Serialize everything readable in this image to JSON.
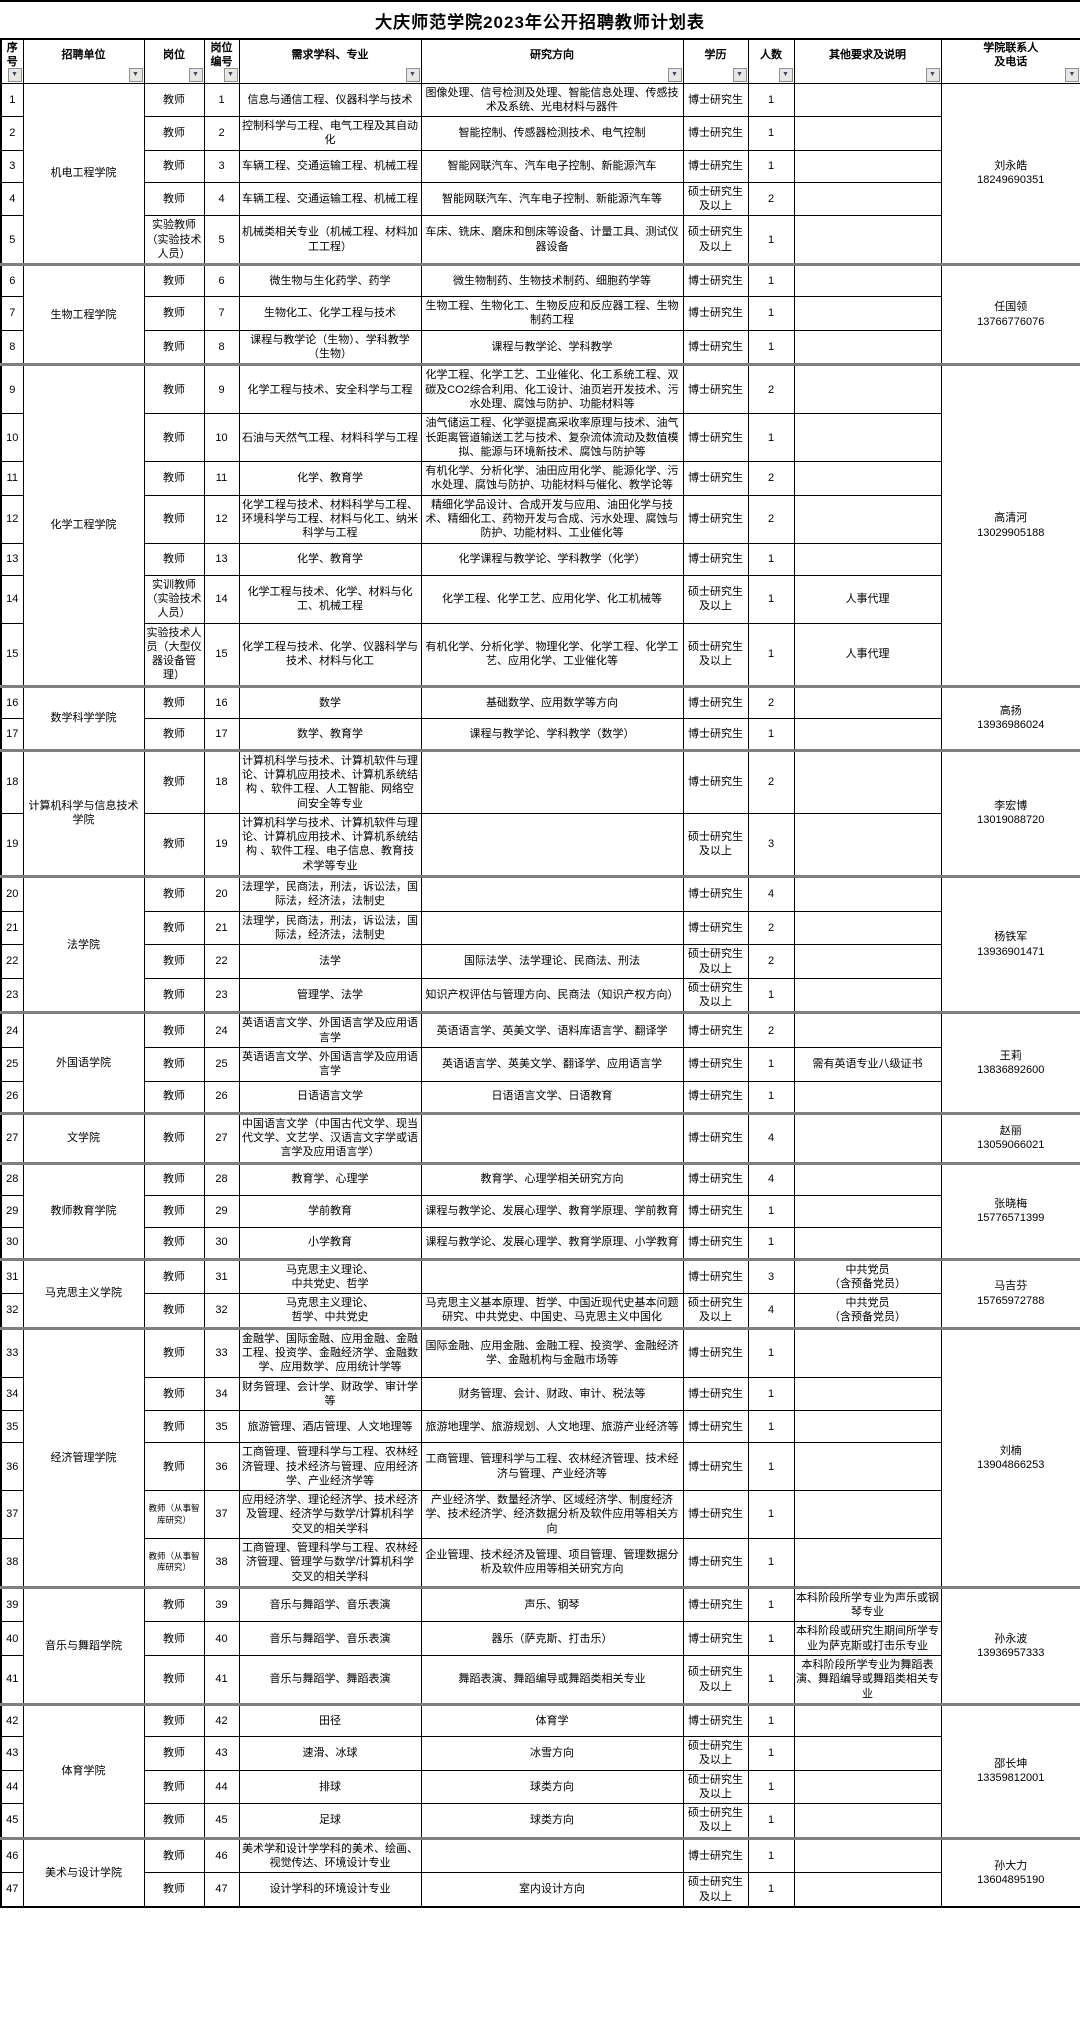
{
  "title": "大庆师范学院2023年公开招聘教师计划表",
  "columns": [
    {
      "key": "no",
      "label": "序号"
    },
    {
      "key": "unit",
      "label": "招聘单位"
    },
    {
      "key": "post",
      "label": "岗位"
    },
    {
      "key": "post_no",
      "label": "岗位编号"
    },
    {
      "key": "major",
      "label": "需求学科、专业"
    },
    {
      "key": "direction",
      "label": "研究方向"
    },
    {
      "key": "degree",
      "label": "学历"
    },
    {
      "key": "count",
      "label": "人数"
    },
    {
      "key": "other",
      "label": "其他要求及说明"
    },
    {
      "key": "contact",
      "label": "学院联系人\n及电话"
    }
  ],
  "filter_icon": "▼",
  "groups": [
    {
      "unit": "机电工程学院",
      "contact": {
        "name": "刘永皓",
        "phone": "18249690351"
      },
      "rows": [
        {
          "no": 1,
          "post": "教师",
          "post_no": 1,
          "major": "信息与通信工程、仪器科学与技术",
          "direction": "图像处理、信号检测及处理、智能信息处理、传感技术及系统、光电材料与器件",
          "degree": "博士研究生",
          "count": 1,
          "other": ""
        },
        {
          "no": 2,
          "post": "教师",
          "post_no": 2,
          "major": "控制科学与工程、电气工程及其自动化",
          "direction": "智能控制、传感器检测技术、电气控制",
          "degree": "博士研究生",
          "count": 1,
          "other": ""
        },
        {
          "no": 3,
          "post": "教师",
          "post_no": 3,
          "major": "车辆工程、交通运输工程、机械工程",
          "direction": "智能网联汽车、汽车电子控制、新能源汽车",
          "degree": "博士研究生",
          "count": 1,
          "other": ""
        },
        {
          "no": 4,
          "post": "教师",
          "post_no": 4,
          "major": "车辆工程、交通运输工程、机械工程",
          "direction": "智能网联汽车、汽车电子控制、新能源汽车等",
          "degree": "硕士研究生及以上",
          "count": 2,
          "other": ""
        },
        {
          "no": 5,
          "post": "实验教师（实验技术人员）",
          "post_no": 5,
          "major": "机械类相关专业（机械工程、材料加工工程）",
          "direction": "车床、铣床、磨床和刨床等设备、计量工具、测试仪器设备",
          "degree": "硕士研究生及以上",
          "count": 1,
          "other": ""
        }
      ]
    },
    {
      "unit": "生物工程学院",
      "contact": {
        "name": "任国领",
        "phone": "13766776076"
      },
      "rows": [
        {
          "no": 6,
          "post": "教师",
          "post_no": 6,
          "major": "微生物与生化药学、药学",
          "direction": "微生物制药、生物技术制药、细胞药学等",
          "degree": "博士研究生",
          "count": 1,
          "other": ""
        },
        {
          "no": 7,
          "post": "教师",
          "post_no": 7,
          "major": "生物化工、化学工程与技术",
          "direction": "生物工程、生物化工、生物反应和反应器工程、生物制药工程",
          "degree": "博士研究生",
          "count": 1,
          "other": ""
        },
        {
          "no": 8,
          "post": "教师",
          "post_no": 8,
          "major": "课程与教学论（生物）、学科教学（生物）",
          "direction": "课程与教学论、学科教学",
          "degree": "博士研究生",
          "count": 1,
          "other": ""
        }
      ]
    },
    {
      "unit": "化学工程学院",
      "contact": {
        "name": "高清河",
        "phone": "13029905188"
      },
      "rows": [
        {
          "no": 9,
          "post": "教师",
          "post_no": 9,
          "major": "化学工程与技术、安全科学与工程",
          "direction": "化学工程、化学工艺、工业催化、化工系统工程、双碳及CO2综合利用、化工设计、油页岩开发技术、污水处理、腐蚀与防护、功能材料等",
          "degree": "博士研究生",
          "count": 2,
          "other": ""
        },
        {
          "no": 10,
          "post": "教师",
          "post_no": 10,
          "major": "石油与天然气工程、材料科学与工程",
          "direction": "油气储运工程、化学驱提高采收率原理与技术、油气长距离管道输送工艺与技术、复杂流体流动及数值模拟、能源与环境新技术、腐蚀与防护等",
          "degree": "博士研究生",
          "count": 1,
          "other": ""
        },
        {
          "no": 11,
          "post": "教师",
          "post_no": 11,
          "major": "化学、教育学",
          "direction": "有机化学、分析化学、油田应用化学、能源化学、污水处理、腐蚀与防护、功能材料与催化、教学论等",
          "degree": "博士研究生",
          "count": 2,
          "other": ""
        },
        {
          "no": 12,
          "post": "教师",
          "post_no": 12,
          "major": "化学工程与技术、材料科学与工程、环境科学与工程、材料与化工、纳米科学与工程",
          "direction": "精细化学品设计、合成开发与应用、油田化学与技术、精细化工、药物开发与合成、污水处理、腐蚀与防护、功能材料、工业催化等",
          "degree": "博士研究生",
          "count": 2,
          "other": ""
        },
        {
          "no": 13,
          "post": "教师",
          "post_no": 13,
          "major": "化学、教育学",
          "direction": "化学课程与教学论、学科教学（化学）",
          "degree": "博士研究生",
          "count": 1,
          "other": ""
        },
        {
          "no": 14,
          "post": "实训教师（实验技术人员）",
          "post_no": 14,
          "major": "化学工程与技术、化学、材料与化工、机械工程",
          "direction": "化学工程、化学工艺、应用化学、化工机械等",
          "degree": "硕士研究生及以上",
          "count": 1,
          "other": "人事代理"
        },
        {
          "no": 15,
          "post": "实验技术人员（大型仪器设备管理）",
          "post_no": 15,
          "major": "化学工程与技术、化学、仪器科学与技术、材料与化工",
          "direction": "有机化学、分析化学、物理化学、化学工程、化学工艺、应用化学、工业催化等",
          "degree": "硕士研究生及以上",
          "count": 1,
          "other": "人事代理"
        }
      ]
    },
    {
      "unit": "数学科学学院",
      "contact": {
        "name": "高扬",
        "phone": "13936986024"
      },
      "rows": [
        {
          "no": 16,
          "post": "教师",
          "post_no": 16,
          "major": "数学",
          "direction": "基础数学、应用数学等方向",
          "degree": "博士研究生",
          "count": 2,
          "other": ""
        },
        {
          "no": 17,
          "post": "教师",
          "post_no": 17,
          "major": "数学、教育学",
          "direction": "课程与教学论、学科教学（数学）",
          "degree": "博士研究生",
          "count": 1,
          "other": ""
        }
      ]
    },
    {
      "unit": "计算机科学与信息技术学院",
      "contact": {
        "name": "李宏博",
        "phone": "13019088720"
      },
      "rows": [
        {
          "no": 18,
          "post": "教师",
          "post_no": 18,
          "major": "计算机科学与技术、计算机软件与理论、计算机应用技术、计算机系统结构 、软件工程、人工智能、网络空间安全等专业",
          "direction": "",
          "degree": "博士研究生",
          "count": 2,
          "other": ""
        },
        {
          "no": 19,
          "post": "教师",
          "post_no": 19,
          "major": "计算机科学与技术、计算机软件与理论、计算机应用技术、计算机系统结构 、软件工程、电子信息、教育技术学等专业",
          "direction": "",
          "degree": "硕士研究生及以上",
          "count": 3,
          "other": ""
        }
      ]
    },
    {
      "unit": "法学院",
      "contact": {
        "name": "杨铁军",
        "phone": "13936901471"
      },
      "rows": [
        {
          "no": 20,
          "post": "教师",
          "post_no": 20,
          "major": "法理学，民商法，刑法，诉讼法，国际法，经济法，法制史",
          "direction": "",
          "degree": "博士研究生",
          "count": 4,
          "other": ""
        },
        {
          "no": 21,
          "post": "教师",
          "post_no": 21,
          "major": "法理学，民商法，刑法，诉讼法，国际法，经济法，法制史",
          "direction": "",
          "degree": "博士研究生",
          "count": 2,
          "other": ""
        },
        {
          "no": 22,
          "post": "教师",
          "post_no": 22,
          "major": "法学",
          "direction": "国际法学、法学理论、民商法、刑法",
          "degree": "硕士研究生及以上",
          "count": 2,
          "other": ""
        },
        {
          "no": 23,
          "post": "教师",
          "post_no": 23,
          "major": "管理学、法学",
          "direction": "知识产权评估与管理方向、民商法（知识产权方向）",
          "degree": "硕士研究生及以上",
          "count": 1,
          "other": ""
        }
      ]
    },
    {
      "unit": "外国语学院",
      "contact": {
        "name": "王莉",
        "phone": "13836892600"
      },
      "rows": [
        {
          "no": 24,
          "post": "教师",
          "post_no": 24,
          "major": "英语语言文学、外国语言学及应用语言学",
          "direction": "英语语言学、英美文学、语料库语言学、翻译学",
          "degree": "博士研究生",
          "count": 2,
          "other": ""
        },
        {
          "no": 25,
          "post": "教师",
          "post_no": 25,
          "major": "英语语言文学、外国语言学及应用语言学",
          "direction": "英语语言学、英美文学、翻译学、应用语言学",
          "degree": "博士研究生",
          "count": 1,
          "other": "需有英语专业八级证书"
        },
        {
          "no": 26,
          "post": "教师",
          "post_no": 26,
          "major": "日语语言文学",
          "direction": "日语语言文学、日语教育",
          "degree": "博士研究生",
          "count": 1,
          "other": ""
        }
      ]
    },
    {
      "unit": "文学院",
      "contact": {
        "name": "赵丽",
        "phone": "13059066021"
      },
      "rows": [
        {
          "no": 27,
          "post": "教师",
          "post_no": 27,
          "major": "中国语言文学（中国古代文学、现当代文学、文艺学、汉语言文字学或语言学及应用语言学）",
          "direction": "",
          "degree": "博士研究生",
          "count": 4,
          "other": ""
        }
      ]
    },
    {
      "unit": "教师教育学院",
      "contact": {
        "name": "张晓梅",
        "phone": "15776571399"
      },
      "rows": [
        {
          "no": 28,
          "post": "教师",
          "post_no": 28,
          "major": "教育学、心理学",
          "direction": "教育学、心理学相关研究方向",
          "degree": "博士研究生",
          "count": 4,
          "other": ""
        },
        {
          "no": 29,
          "post": "教师",
          "post_no": 29,
          "major": "学前教育",
          "direction": "课程与教学论、发展心理学、教育学原理、学前教育",
          "degree": "博士研究生",
          "count": 1,
          "other": ""
        },
        {
          "no": 30,
          "post": "教师",
          "post_no": 30,
          "major": "小学教育",
          "direction": "课程与教学论、发展心理学、教育学原理、小学教育",
          "degree": "博士研究生",
          "count": 1,
          "other": ""
        }
      ]
    },
    {
      "unit": "马克思主义学院",
      "contact": {
        "name": "马吉芬",
        "phone": "15765972788"
      },
      "rows": [
        {
          "no": 31,
          "post": "教师",
          "post_no": 31,
          "major": "马克思主义理论、\n中共党史、哲学",
          "direction": "",
          "degree": "博士研究生",
          "count": 3,
          "other": "中共党员\n（含预备党员）"
        },
        {
          "no": 32,
          "post": "教师",
          "post_no": 32,
          "major": "马克思主义理论、\n哲学、中共党史",
          "direction": "马克思主义基本原理、哲学、中国近现代史基本问题研究、中共党史、中国史、马克思主义中国化",
          "degree": "硕士研究生及以上",
          "count": 4,
          "other": "中共党员\n（含预备党员）"
        }
      ]
    },
    {
      "unit": "经济管理学院",
      "contact": {
        "name": "刘楠",
        "phone": "13904866253"
      },
      "rows": [
        {
          "no": 33,
          "post": "教师",
          "post_no": 33,
          "major": "金融学、国际金融、应用金融、金融工程、投资学、金融经济学、金融数学、应用数学、应用统计学等",
          "direction": "国际金融、应用金融、金融工程、投资学、金融经济学、金融机构与金融市场等",
          "degree": "博士研究生",
          "count": 1,
          "other": ""
        },
        {
          "no": 34,
          "post": "教师",
          "post_no": 34,
          "major": "财务管理、会计学、财政学、审计学等",
          "direction": "财务管理、会计、财政、审计、税法等",
          "degree": "博士研究生",
          "count": 1,
          "other": ""
        },
        {
          "no": 35,
          "post": "教师",
          "post_no": 35,
          "major": "旅游管理、酒店管理、人文地理等",
          "direction": "旅游地理学、旅游规划、人文地理、旅游产业经济等",
          "degree": "博士研究生",
          "count": 1,
          "other": ""
        },
        {
          "no": 36,
          "post": "教师",
          "post_no": 36,
          "major": "工商管理、管理科学与工程、农林经济管理、技术经济与管理、应用经济学、产业经济学等",
          "direction": "工商管理、管理科学与工程、农林经济管理、技术经济与管理、产业经济等",
          "degree": "博士研究生",
          "count": 1,
          "other": ""
        },
        {
          "no": 37,
          "post": "教师（从事智库研究）",
          "post_no": 37,
          "major": "应用经济学、理论经济学、技术经济及管理、经济学与数学/计算机科学交叉的相关学科",
          "direction": "产业经济学、数量经济学、区域经济学、制度经济学、技术经济学、经济数据分析及软件应用等相关方向",
          "degree": "博士研究生",
          "count": 1,
          "other": ""
        },
        {
          "no": 38,
          "post": "教师（从事智库研究）",
          "post_no": 38,
          "major": "工商管理、管理科学与工程、农林经济管理、管理学与数学/计算机科学交叉的相关学科",
          "direction": "企业管理、技术经济及管理、项目管理、管理数据分析及软件应用等相关研究方向",
          "degree": "博士研究生",
          "count": 1,
          "other": ""
        }
      ]
    },
    {
      "unit": "音乐与舞蹈学院",
      "contact": {
        "name": "孙永波",
        "phone": "13936957333"
      },
      "rows": [
        {
          "no": 39,
          "post": "教师",
          "post_no": 39,
          "major": "音乐与舞蹈学、音乐表演",
          "direction": "声乐、钢琴",
          "degree": "博士研究生",
          "count": 1,
          "other": "本科阶段所学专业为声乐或钢琴专业"
        },
        {
          "no": 40,
          "post": "教师",
          "post_no": 40,
          "major": "音乐与舞蹈学、音乐表演",
          "direction": "器乐（萨克斯、打击乐）",
          "degree": "博士研究生",
          "count": 1,
          "other": "本科阶段或研究生期间所学专业为萨克斯或打击乐专业"
        },
        {
          "no": 41,
          "post": "教师",
          "post_no": 41,
          "major": "音乐与舞蹈学、舞蹈表演",
          "direction": "舞蹈表演、舞蹈编导或舞蹈类相关专业",
          "degree": "硕士研究生及以上",
          "count": 1,
          "other": "本科阶段所学专业为舞蹈表演、舞蹈编导或舞蹈类相关专业"
        }
      ]
    },
    {
      "unit": "体育学院",
      "contact": {
        "name": "邵长坤",
        "phone": "13359812001"
      },
      "rows": [
        {
          "no": 42,
          "post": "教师",
          "post_no": 42,
          "major": "田径",
          "direction": "体育学",
          "degree": "博士研究生",
          "count": 1,
          "other": ""
        },
        {
          "no": 43,
          "post": "教师",
          "post_no": 43,
          "major": "速滑、冰球",
          "direction": "冰雪方向",
          "degree": "硕士研究生及以上",
          "count": 1,
          "other": ""
        },
        {
          "no": 44,
          "post": "教师",
          "post_no": 44,
          "major": "排球",
          "direction": "球类方向",
          "degree": "硕士研究生及以上",
          "count": 1,
          "other": ""
        },
        {
          "no": 45,
          "post": "教师",
          "post_no": 45,
          "major": "足球",
          "direction": "球类方向",
          "degree": "硕士研究生及以上",
          "count": 1,
          "other": ""
        }
      ]
    },
    {
      "unit": "美术与设计学院",
      "contact": {
        "name": "孙大力",
        "phone": "13604895190"
      },
      "rows": [
        {
          "no": 46,
          "post": "教师",
          "post_no": 46,
          "major": "美术学和设计学学科的美术、绘画、视觉传达、环境设计专业",
          "direction": "",
          "degree": "博士研究生",
          "count": 1,
          "other": ""
        },
        {
          "no": 47,
          "post": "教师",
          "post_no": 47,
          "major": "设计学科的环境设计专业",
          "direction": "室内设计方向",
          "degree": "硕士研究生及以上",
          "count": 1,
          "other": ""
        }
      ]
    }
  ]
}
